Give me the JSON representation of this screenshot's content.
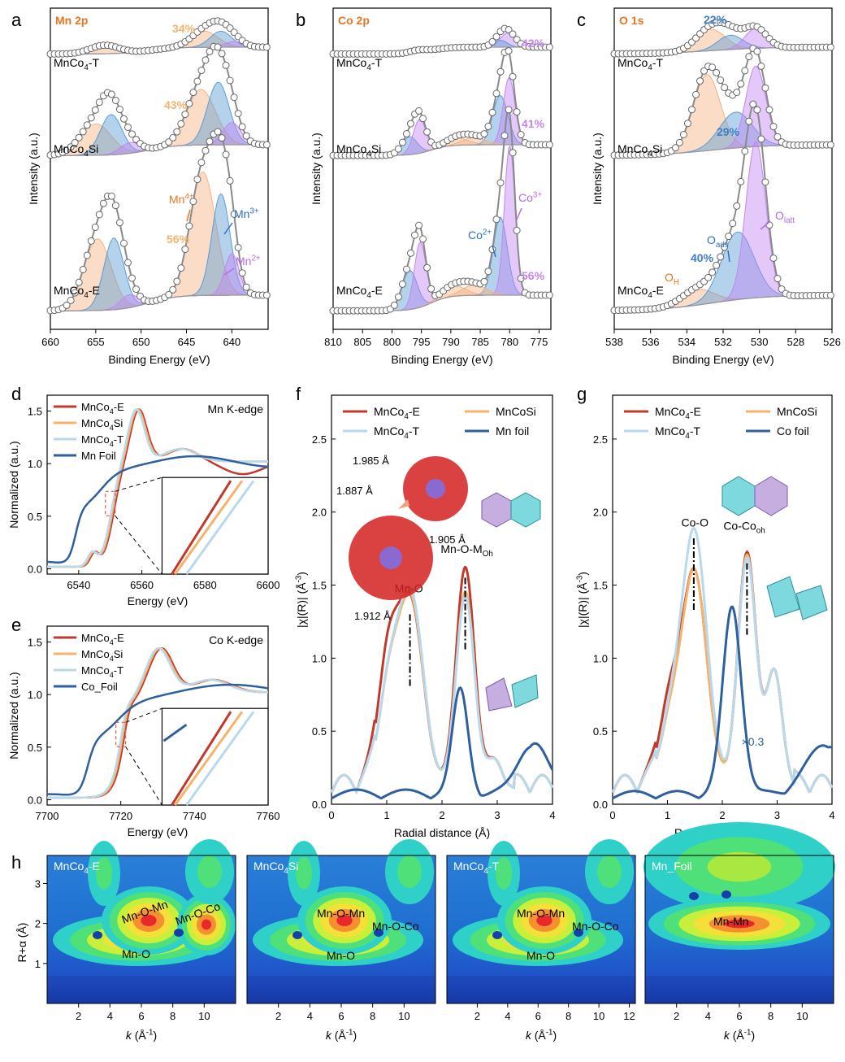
{
  "figure": {
    "panel_letters": [
      "a",
      "b",
      "c",
      "d",
      "e",
      "f",
      "g",
      "h"
    ]
  },
  "chart_data": [
    {
      "panel": "a",
      "type": "line",
      "corner_label": "Mn 2p",
      "xlabel": "Binding Energy (eV)",
      "ylabel": "Intensity (a.u.)",
      "xlim": [
        660,
        636
      ],
      "xticks": [
        660,
        655,
        650,
        645,
        640
      ],
      "samples": [
        {
          "name": "MnCo4-T",
          "label_pct": "34%",
          "peaks": [
            {
              "x": 654,
              "h": 0.15,
              "w": 1.6,
              "c": "#f4b183"
            },
            {
              "x": 643,
              "h": 0.28,
              "w": 1.5,
              "c": "#f4b183"
            },
            {
              "x": 641.2,
              "h": 0.28,
              "w": 1.2,
              "c": "#5b9bd5"
            },
            {
              "x": 639.7,
              "h": 0.1,
              "w": 1.0,
              "c": "#c285f2"
            }
          ]
        },
        {
          "name": "MnCo4Si",
          "label_pct": "43%",
          "peaks": [
            {
              "x": 655,
              "h": 0.35,
              "w": 1.7,
              "c": "#f4b183"
            },
            {
              "x": 653.3,
              "h": 0.45,
              "w": 1.2,
              "c": "#5b9bd5"
            },
            {
              "x": 651.2,
              "h": 0.12,
              "w": 1.1,
              "c": "#c285f2"
            },
            {
              "x": 643.4,
              "h": 0.62,
              "w": 1.6,
              "c": "#f4b183"
            },
            {
              "x": 641.5,
              "h": 0.7,
              "w": 1.2,
              "c": "#5b9bd5"
            },
            {
              "x": 640,
              "h": 0.25,
              "w": 1.0,
              "c": "#c285f2"
            }
          ]
        },
        {
          "name": "MnCo4-E",
          "label_pct": "56%",
          "peaks": [
            {
              "x": 654.8,
              "h": 0.55,
              "w": 1.5,
              "c": "#f4b183"
            },
            {
              "x": 653,
              "h": 0.55,
              "w": 1.1,
              "c": "#5b9bd5"
            },
            {
              "x": 651.3,
              "h": 0.1,
              "w": 1.0,
              "c": "#c285f2"
            },
            {
              "x": 643.2,
              "h": 0.95,
              "w": 1.4,
              "c": "#f4b183"
            },
            {
              "x": 641.2,
              "h": 0.78,
              "w": 1.0,
              "c": "#5b9bd5"
            },
            {
              "x": 640,
              "h": 0.32,
              "w": 0.8,
              "c": "#c285f2"
            }
          ]
        }
      ],
      "annotations": [
        "Mn4+",
        "Mn3+",
        "Mn2+"
      ]
    },
    {
      "panel": "b",
      "type": "line",
      "corner_label": "Co 2p",
      "xlabel": "Binding Energy (eV)",
      "ylabel": "Intensity (a.u.)",
      "xlim": [
        810,
        773
      ],
      "xticks": [
        810,
        805,
        800,
        795,
        790,
        785,
        780,
        775
      ],
      "samples": [
        {
          "name": "MnCo4-T",
          "label_pct": "42%",
          "peaks": [
            {
              "x": 795.5,
              "h": 0.05,
              "w": 1.5,
              "c": "#c285f2"
            },
            {
              "x": 780.3,
              "h": 0.25,
              "w": 1.3,
              "c": "#c285f2"
            },
            {
              "x": 781.6,
              "h": 0.12,
              "w": 1.2,
              "c": "#5b9bd5"
            }
          ]
        },
        {
          "name": "MnCo4Si",
          "label_pct": "41%",
          "peaks": [
            {
              "x": 797,
              "h": 0.2,
              "w": 1.3,
              "c": "#5b9bd5"
            },
            {
              "x": 795.3,
              "h": 0.38,
              "w": 1.1,
              "c": "#c285f2"
            },
            {
              "x": 789,
              "h": 0.08,
              "w": 2.0,
              "c": "#f4b183"
            },
            {
              "x": 781.6,
              "h": 0.55,
              "w": 1.3,
              "c": "#5b9bd5"
            },
            {
              "x": 780.1,
              "h": 0.75,
              "w": 1.0,
              "c": "#c285f2"
            },
            {
              "x": 786,
              "h": 0.08,
              "w": 2.0,
              "c": "#f4b183"
            }
          ]
        },
        {
          "name": "MnCo4-E",
          "label_pct": "56%",
          "peaks": [
            {
              "x": 797,
              "h": 0.3,
              "w": 1.3,
              "c": "#5b9bd5"
            },
            {
              "x": 795.2,
              "h": 0.5,
              "w": 1.0,
              "c": "#c285f2"
            },
            {
              "x": 789.5,
              "h": 0.08,
              "w": 2.0,
              "c": "#f4b183"
            },
            {
              "x": 781.6,
              "h": 0.6,
              "w": 1.2,
              "c": "#5b9bd5"
            },
            {
              "x": 780,
              "h": 1.15,
              "w": 0.9,
              "c": "#c285f2"
            },
            {
              "x": 786,
              "h": 0.08,
              "w": 2.0,
              "c": "#f4b183"
            }
          ]
        }
      ],
      "annotations": [
        "Co2+",
        "Co3+"
      ]
    },
    {
      "panel": "c",
      "type": "line",
      "corner_label": "O 1s",
      "xlabel": "Binding Energy (eV)",
      "ylabel": "Intensity (a.u.)",
      "xlim": [
        538,
        526
      ],
      "xticks": [
        538,
        536,
        534,
        532,
        530,
        528,
        526
      ],
      "samples": [
        {
          "name": "MnCo4-T",
          "label_pct": "22%",
          "peaks": [
            {
              "x": 532.7,
              "h": 0.38,
              "w": 0.8,
              "c": "#f4b183"
            },
            {
              "x": 531.6,
              "h": 0.25,
              "w": 0.7,
              "c": "#5b9bd5"
            },
            {
              "x": 530.2,
              "h": 0.35,
              "w": 0.6,
              "c": "#c285f2"
            }
          ]
        },
        {
          "name": "MnCo4Si",
          "label_pct": "29%",
          "peaks": [
            {
              "x": 532.9,
              "h": 0.85,
              "w": 0.75,
              "c": "#f4b183"
            },
            {
              "x": 531.3,
              "h": 0.4,
              "w": 0.9,
              "c": "#5b9bd5"
            },
            {
              "x": 530.2,
              "h": 0.9,
              "w": 0.55,
              "c": "#c285f2"
            }
          ]
        },
        {
          "name": "MnCo4-E",
          "label_pct": "40%",
          "peaks": [
            {
              "x": 533.4,
              "h": 0.12,
              "w": 0.9,
              "c": "#f4b183"
            },
            {
              "x": 531.2,
              "h": 0.52,
              "w": 0.9,
              "c": "#5b9bd5"
            },
            {
              "x": 530.2,
              "h": 1.2,
              "w": 0.55,
              "c": "#c285f2"
            }
          ]
        }
      ],
      "annotations": [
        "OH",
        "Oads",
        "Olatt"
      ]
    },
    {
      "panel": "d",
      "type": "line",
      "corner_label": "Mn K-edge",
      "xlabel": "Energy (eV)",
      "ylabel": "Normalized (a.u.)",
      "xlim": [
        6530,
        6600
      ],
      "ylim": [
        -0.05,
        1.65
      ],
      "xticks": [
        6540,
        6560,
        6580,
        6600
      ],
      "yticks": [
        0.0,
        0.5,
        1.0,
        1.5
      ],
      "legend": [
        "MnCo4-E",
        "MnCo4Si",
        "MnCo4-T",
        "Mn Foil"
      ]
    },
    {
      "panel": "e",
      "type": "line",
      "corner_label": "Co K-edge",
      "xlabel": "Energy (eV)",
      "ylabel": "Normalized (a.u.)",
      "xlim": [
        7700,
        7760
      ],
      "ylim": [
        -0.05,
        1.65
      ],
      "xticks": [
        7700,
        7720,
        7740,
        7760
      ],
      "yticks": [
        0.0,
        0.5,
        1.0,
        1.5
      ],
      "legend": [
        "MnCo4-E",
        "MnCo4Si",
        "MnCo4-T",
        "Co_Foil"
      ]
    },
    {
      "panel": "f",
      "type": "line",
      "xlabel": "Radial distance (Å)",
      "ylabel": "|χ(R)| (Å⁻³)",
      "xlim": [
        0,
        4
      ],
      "ylim": [
        0,
        2.8
      ],
      "xticks": [
        0,
        1,
        2,
        3,
        4
      ],
      "yticks": [
        0.0,
        0.5,
        1.0,
        1.5,
        2.0,
        2.5
      ],
      "legend": [
        "MnCo4-E",
        "MnCoSi",
        "MnCo4-T",
        "Mn foil"
      ],
      "peaks": {
        "Mn-O": 1.45,
        "Mn-O-M_Oh": 2.4
      },
      "bond_lengths": [
        "1.985 Å",
        "1.887 Å",
        "1.905 Å",
        "1.912 Å"
      ]
    },
    {
      "panel": "g",
      "type": "line",
      "xlabel": "Radial distance (Å)",
      "ylabel": "|χ(R)| (Å⁻³)",
      "xlim": [
        0,
        4
      ],
      "ylim": [
        0,
        2.8
      ],
      "xticks": [
        0,
        1,
        2,
        3,
        4
      ],
      "yticks": [
        0.0,
        0.5,
        1.0,
        1.5,
        2.0,
        2.5
      ],
      "legend": [
        "MnCo4-E",
        "MnCoSi",
        "MnCo4-T",
        "Co foil"
      ],
      "peaks": {
        "Co-O": 1.5,
        "Co-Co_oh": 2.45
      },
      "scale_note": "×0.3"
    },
    {
      "panel": "h",
      "type": "heatmap",
      "ylabel": "R+α (Å)",
      "xlabel": "k (Å⁻¹)",
      "maps": [
        {
          "name": "MnCo4-E",
          "labels": [
            "Mn-O-Mn",
            "Mn-O-Co",
            "Mn-O"
          ],
          "xticks": [
            2,
            4,
            6,
            8,
            10
          ]
        },
        {
          "name": "MnCo4Si",
          "labels": [
            "Mn-O-Mn",
            "Mn-O-Co",
            "Mn-O"
          ],
          "xticks": [
            2,
            4,
            6,
            8,
            10
          ]
        },
        {
          "name": "MnCo4-T",
          "labels": [
            "Mn-O-Mn",
            "Mn-O-Co",
            "Mn-O"
          ],
          "xticks": [
            2,
            4,
            6,
            8,
            10,
            12
          ]
        },
        {
          "name": "Mn_Foil",
          "labels": [
            "Mn-Mn"
          ],
          "xticks": [
            2,
            4,
            6,
            8,
            10
          ]
        }
      ],
      "yticks": [
        1,
        2,
        3
      ]
    }
  ],
  "colors": {
    "E": "#c0392b",
    "Si": "#f5b26b",
    "T": "#b8d8ec",
    "foil": "#2e5f9e",
    "orange": "#f0a860",
    "blue": "#3c7fc9",
    "purple": "#b36ae6"
  }
}
